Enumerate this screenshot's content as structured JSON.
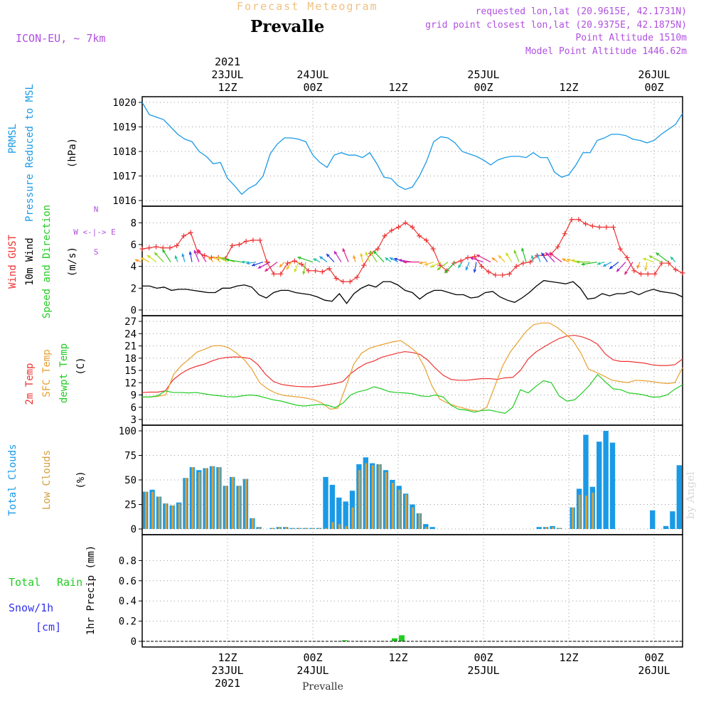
{
  "header": {
    "chart_kind": "Forecast Meteogram",
    "location": "Prevalle",
    "model": "ICON-EU, ~ 7km",
    "requested": "requested lon,lat (20.9615E, 42.1731N)",
    "gridpoint": "grid point closest lon,lat (20.9375E, 42.1875N)",
    "point_alt": "Point Altitude 1510m",
    "model_alt": "Model Point Altitude 1446.62m",
    "footer_location": "Prevalle",
    "watermark": "by Angel"
  },
  "colors": {
    "pressure": "#1a9ae6",
    "gust": "#ee3333",
    "wind": "#000000",
    "temp2m": "#ee3333",
    "sfc": "#e8a030",
    "dewpt": "#22cc22",
    "total_clouds": "#1a9ae6",
    "low_clouds": "#d4a040",
    "rain": "#22cc22",
    "snow": "#3333ee",
    "header_purple": "#b050e0"
  },
  "chart_data": [
    {
      "type": "line",
      "panel": "pressure",
      "ylabel": [
        "PRMSL",
        "Pressure Reduced to MSL",
        "(hPa)"
      ],
      "ylim": [
        1016,
        1020
      ],
      "yticks": [
        "1016",
        "1017",
        "1018",
        "1019",
        "1020"
      ],
      "x_hours_from_start": [
        0,
        1,
        2,
        3,
        4,
        5,
        6,
        7,
        8,
        9,
        10,
        11,
        12,
        13,
        14,
        15,
        16,
        17,
        18,
        19,
        20,
        21,
        22,
        23,
        24,
        25,
        26,
        27,
        28,
        29,
        30,
        31,
        32,
        33,
        34,
        35,
        36,
        37,
        38,
        39,
        40,
        41,
        42,
        43,
        44,
        45,
        46,
        47,
        48,
        49,
        50,
        51,
        52,
        53,
        54,
        55,
        56,
        57,
        58,
        59,
        60,
        61,
        62,
        63,
        64,
        65,
        66,
        67,
        68,
        69,
        70,
        71,
        72,
        73,
        74,
        75,
        76
      ],
      "series": [
        {
          "name": "PRMSL",
          "values": [
            1020.0,
            1019.5,
            1019.4,
            1019.3,
            1019.0,
            1018.7,
            1018.5,
            1018.4,
            1018.0,
            1017.8,
            1017.5,
            1017.55,
            1016.9,
            1016.6,
            1016.25,
            1016.5,
            1016.65,
            1017.0,
            1017.9,
            1018.3,
            1018.55,
            1018.55,
            1018.5,
            1018.4,
            1017.85,
            1017.55,
            1017.35,
            1017.85,
            1017.95,
            1017.85,
            1017.85,
            1017.75,
            1017.95,
            1017.5,
            1016.95,
            1016.9,
            1016.6,
            1016.45,
            1016.55,
            1017.0,
            1017.6,
            1018.4,
            1018.6,
            1018.55,
            1018.35,
            1018.0,
            1017.9,
            1017.8,
            1017.65,
            1017.45,
            1017.65,
            1017.75,
            1017.8,
            1017.8,
            1017.75,
            1017.95,
            1017.75,
            1017.75,
            1017.15,
            1016.95,
            1017.05,
            1017.45,
            1017.95,
            1017.95,
            1018.45,
            1018.55,
            1018.7,
            1018.7,
            1018.65,
            1018.5,
            1018.45,
            1018.35,
            1018.45,
            1018.7,
            1018.9,
            1019.1,
            1019.55
          ]
        }
      ]
    },
    {
      "type": "line",
      "panel": "wind",
      "ylabel": [
        "Wind GUST",
        "10m Wind",
        "Speed and Direction",
        "(m/s)"
      ],
      "compass": [
        "N",
        "W <-|-> E",
        "S"
      ],
      "ylim": [
        0,
        9
      ],
      "yticks": [
        "0",
        "2",
        "4",
        "6",
        "8"
      ],
      "series": [
        {
          "name": "Wind GUST",
          "values": [
            5.6,
            5.7,
            5.8,
            5.7,
            5.7,
            5.9,
            6.8,
            7.1,
            5.3,
            5.0,
            4.8,
            4.8,
            4.7,
            5.9,
            6.0,
            6.3,
            6.4,
            6.4,
            4.4,
            3.3,
            3.3,
            4.3,
            4.5,
            4.2,
            3.6,
            3.6,
            3.5,
            3.8,
            2.9,
            2.6,
            2.6,
            3.0,
            4.1,
            5.2,
            5.6,
            6.8,
            7.3,
            7.6,
            8.0,
            7.6,
            6.8,
            6.4,
            5.6,
            4.1,
            3.6,
            4.3,
            4.5,
            4.8,
            4.9,
            4.0,
            3.5,
            3.2,
            3.2,
            3.3,
            4.0,
            4.3,
            4.4,
            5.0,
            5.0,
            5.1,
            5.8,
            7.0,
            8.3,
            8.3,
            7.9,
            7.7,
            7.6,
            7.6,
            7.6,
            5.6,
            4.8,
            3.6,
            3.3,
            3.3,
            3.3,
            4.3,
            4.3,
            3.7,
            3.4
          ]
        },
        {
          "name": "10m Wind",
          "values": [
            2.2,
            2.2,
            2.0,
            2.1,
            1.8,
            1.9,
            1.9,
            1.8,
            1.7,
            1.6,
            1.6,
            2.0,
            2.0,
            2.2,
            2.3,
            2.1,
            1.4,
            1.1,
            1.6,
            1.8,
            1.8,
            1.6,
            1.5,
            1.4,
            1.2,
            0.9,
            0.8,
            1.5,
            0.6,
            1.5,
            2.0,
            2.3,
            2.1,
            2.6,
            2.6,
            2.3,
            1.8,
            1.6,
            1.0,
            1.5,
            1.8,
            1.8,
            1.6,
            1.4,
            1.4,
            1.1,
            1.2,
            1.6,
            1.7,
            1.2,
            0.9,
            0.7,
            1.1,
            1.6,
            2.2,
            2.7,
            2.6,
            2.5,
            2.4,
            2.6,
            2.0,
            1.0,
            1.1,
            1.5,
            1.3,
            1.5,
            1.5,
            1.7,
            1.4,
            1.7,
            1.9,
            1.7,
            1.6,
            1.5,
            1.2
          ]
        }
      ]
    },
    {
      "type": "line",
      "panel": "temperature",
      "ylabel": [
        "2m Temp",
        "SFC Temp",
        "dewpt Temp",
        "(C)"
      ],
      "ylim": [
        3,
        27
      ],
      "yticks": [
        "3",
        "6",
        "9",
        "12",
        "15",
        "18",
        "21",
        "24",
        "27"
      ],
      "series": [
        {
          "name": "2m Temp",
          "values": [
            9.6,
            9.7,
            9.7,
            10.0,
            12.7,
            14.2,
            15.3,
            16.0,
            16.5,
            17.3,
            17.9,
            18.2,
            18.3,
            18.2,
            17.9,
            16.4,
            14.0,
            12.3,
            11.6,
            11.3,
            11.1,
            11.0,
            11.0,
            11.2,
            11.5,
            11.8,
            12.3,
            14.2,
            15.6,
            16.7,
            17.3,
            18.2,
            18.7,
            19.2,
            19.6,
            19.4,
            18.9,
            17.5,
            15.5,
            13.8,
            12.8,
            12.6,
            12.6,
            12.8,
            13.0,
            13.0,
            12.8,
            13.2,
            13.3,
            15.0,
            17.8,
            19.5,
            20.7,
            21.8,
            22.8,
            23.4,
            23.6,
            23.2,
            22.5,
            21.4,
            19.0,
            17.6,
            17.2,
            17.2,
            17.0,
            16.8,
            16.4,
            16.2,
            16.2,
            16.4,
            17.8
          ]
        },
        {
          "name": "SFC Temp",
          "values": [
            8.5,
            8.5,
            8.7,
            9.0,
            14.0,
            16.2,
            17.8,
            19.5,
            20.2,
            21.0,
            21.1,
            20.6,
            19.3,
            17.7,
            15.3,
            12.0,
            10.5,
            9.5,
            8.9,
            8.7,
            8.5,
            8.2,
            7.8,
            7.0,
            5.5,
            5.8,
            11.0,
            16.5,
            19.2,
            20.4,
            21.0,
            21.5,
            22.0,
            22.3,
            21.0,
            19.5,
            16.0,
            11.2,
            8.0,
            7.0,
            6.3,
            5.8,
            5.3,
            5.0,
            6.0,
            11.0,
            16.0,
            19.5,
            22.0,
            24.5,
            26.2,
            26.6,
            26.6,
            25.5,
            24.0,
            22.3,
            19.3,
            15.3,
            14.5,
            13.6,
            12.6,
            12.3,
            12.0,
            12.6,
            12.5,
            12.3,
            12.0,
            11.8,
            12.0,
            15.7
          ]
        },
        {
          "name": "dewpt Temp",
          "values": [
            8.5,
            8.5,
            8.8,
            10.0,
            9.6,
            9.6,
            9.5,
            9.6,
            9.3,
            9.0,
            8.8,
            8.6,
            8.5,
            8.8,
            9.0,
            8.8,
            8.3,
            7.8,
            7.5,
            7.0,
            6.5,
            6.3,
            6.5,
            6.7,
            6.5,
            5.9,
            7.0,
            9.0,
            9.8,
            10.2,
            11.0,
            10.5,
            9.8,
            9.6,
            9.5,
            9.3,
            8.8,
            8.6,
            9.0,
            8.5,
            6.5,
            5.5,
            5.3,
            4.8,
            5.2,
            5.3,
            4.9,
            4.5,
            6.0,
            10.3,
            9.5,
            11.1,
            12.5,
            12.0,
            8.8,
            7.5,
            7.8,
            9.5,
            11.5,
            14.0,
            12.2,
            10.5,
            10.3,
            9.5,
            9.3,
            9.0,
            8.5,
            8.5,
            9.0,
            10.4,
            11.5
          ]
        }
      ]
    },
    {
      "type": "bar",
      "panel": "clouds",
      "ylabel": [
        "Total Clouds",
        "Low Clouds",
        "(%)"
      ],
      "ylim": [
        0,
        100
      ],
      "yticks": [
        "0",
        "25",
        "50",
        "75",
        "100"
      ],
      "series": [
        {
          "name": "Total Clouds",
          "values": [
            38,
            40,
            33,
            26,
            24,
            27,
            52,
            63,
            60,
            62,
            64,
            63,
            44,
            53,
            44,
            51,
            11,
            2,
            0,
            1,
            2,
            2,
            1,
            1,
            1,
            1,
            1,
            53,
            45,
            32,
            28,
            39,
            66,
            73,
            67,
            66,
            60,
            50,
            44,
            36,
            25,
            16,
            5,
            2,
            0,
            0,
            0,
            0,
            0,
            0,
            0,
            0,
            0,
            0,
            0,
            0,
            0,
            0,
            0,
            2,
            2,
            3,
            1,
            0,
            22,
            41,
            96,
            43,
            89,
            100,
            88,
            0,
            0,
            0,
            0,
            0,
            19,
            0,
            3,
            18,
            65
          ]
        },
        {
          "name": "Low Clouds",
          "values": [
            38,
            38,
            33,
            26,
            24,
            26,
            52,
            63,
            58,
            62,
            64,
            63,
            44,
            53,
            44,
            51,
            11,
            2,
            0,
            1,
            2,
            2,
            1,
            1,
            1,
            1,
            1,
            1,
            7,
            5,
            3,
            22,
            60,
            67,
            65,
            66,
            58,
            47,
            40,
            35,
            22,
            16,
            2,
            0,
            0,
            0,
            0,
            0,
            0,
            0,
            0,
            0,
            0,
            0,
            0,
            0,
            0,
            0,
            0,
            0,
            2,
            2,
            1,
            0,
            22,
            35,
            34,
            37,
            0,
            0,
            0,
            0,
            0,
            0,
            0,
            0,
            0,
            0,
            0,
            0,
            0
          ]
        }
      ]
    },
    {
      "type": "bar",
      "panel": "precip",
      "ylabel": [
        "1hr Precip (mm)"
      ],
      "legend": [
        "Total",
        "Rain",
        "Snow/1h",
        "[cm]"
      ],
      "ylim": [
        0,
        1
      ],
      "yticks": [
        "0",
        "0.2",
        "0.4",
        "0.6",
        "0.8"
      ],
      "series": [
        {
          "name": "Rain",
          "values": [
            0,
            0,
            0,
            0,
            0,
            0,
            0,
            0,
            0,
            0,
            0,
            0,
            0,
            0,
            0,
            0,
            0,
            0,
            0,
            0,
            0,
            0,
            0,
            0,
            0,
            0,
            0,
            0,
            0.01,
            0,
            0,
            0,
            0,
            0,
            0,
            0.03,
            0.06,
            0,
            0,
            0,
            0,
            0,
            0,
            0,
            0,
            0,
            0,
            0,
            0,
            0,
            0,
            0,
            0,
            0,
            0,
            0,
            0,
            0,
            0,
            0,
            0,
            0,
            0,
            0,
            0,
            0,
            0,
            0,
            0,
            0,
            0,
            0,
            0,
            0,
            0,
            0
          ]
        }
      ]
    }
  ],
  "time_axis": {
    "top_labels": [
      {
        "line1": "2021",
        "line2": "23JUL",
        "line3": "12Z"
      },
      {
        "line1": "",
        "line2": "24JUL",
        "line3": "00Z"
      },
      {
        "line1": "",
        "line2": "",
        "line3": "12Z"
      },
      {
        "line1": "",
        "line2": "25JUL",
        "line3": "00Z"
      },
      {
        "line1": "",
        "line2": "",
        "line3": "12Z"
      },
      {
        "line1": "",
        "line2": "26JUL",
        "line3": "00Z"
      }
    ],
    "bottom_labels": [
      {
        "line1": "12Z",
        "line2": "23JUL",
        "line3": "2021"
      },
      {
        "line1": "00Z",
        "line2": "24JUL",
        "line3": ""
      },
      {
        "line1": "12Z",
        "line2": "",
        "line3": ""
      },
      {
        "line1": "00Z",
        "line2": "25JUL",
        "line3": ""
      },
      {
        "line1": "12Z",
        "line2": "",
        "line3": ""
      },
      {
        "line1": "00Z",
        "line2": "26JUL",
        "line3": ""
      }
    ]
  }
}
